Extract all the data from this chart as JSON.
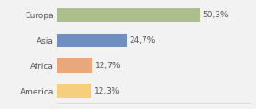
{
  "categories": [
    "Europa",
    "Asia",
    "Africa",
    "America"
  ],
  "values": [
    50.3,
    24.7,
    12.7,
    12.3
  ],
  "labels": [
    "50,3%",
    "24,7%",
    "12,7%",
    "12,3%"
  ],
  "bar_colors": [
    "#abbe8b",
    "#6e8fbf",
    "#e8a87c",
    "#f5cf7e"
  ],
  "background_color": "#f2f2f2",
  "xlim": [
    0,
    68
  ],
  "label_fontsize": 6.5,
  "tick_fontsize": 6.5,
  "bar_height": 0.55
}
